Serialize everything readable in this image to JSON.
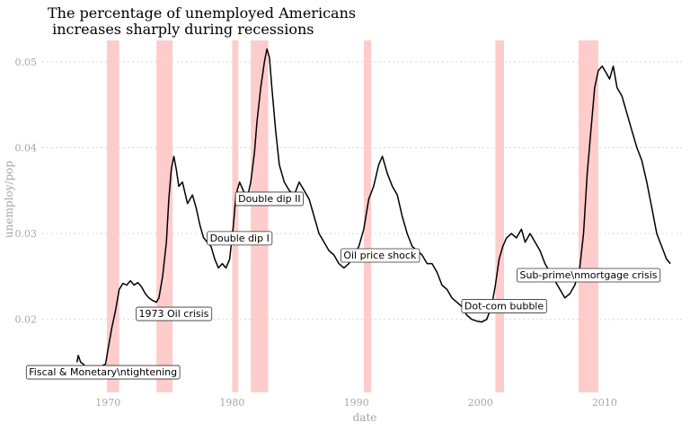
{
  "chart_data": {
    "type": "line",
    "title": "The percentage of unemployed Americans\n increases sharply during recessions",
    "xlabel": "date",
    "ylabel": "unemploy/pop",
    "xlim": [
      1964.7,
      2016.3
    ],
    "ylim": [
      0.0115,
      0.0525
    ],
    "x_ticks": [
      1970,
      1980,
      1990,
      2000,
      2010
    ],
    "x_tick_labels": [
      "1970",
      "1980",
      "1990",
      "2000",
      "2010"
    ],
    "y_ticks": [
      0.02,
      0.03,
      0.04,
      0.05
    ],
    "y_tick_labels": [
      "0.02",
      "0.03",
      "0.04",
      "0.05"
    ],
    "grid": "horizontal dashed",
    "legend": "none",
    "series": [
      {
        "x": [
          1967.5,
          1967.6,
          1967.8,
          1968.0,
          1968.3,
          1968.6,
          1969.0,
          1969.4,
          1969.8,
          1970.0,
          1970.3,
          1970.6,
          1970.9,
          1971.2,
          1971.5,
          1971.8,
          1972.1,
          1972.4,
          1972.7,
          1973.0,
          1973.3,
          1973.6,
          1973.9,
          1974.1,
          1974.4,
          1974.7,
          1974.9,
          1975.1,
          1975.3,
          1975.5,
          1975.7,
          1976.0,
          1976.4,
          1976.8,
          1977.1,
          1977.4,
          1977.7,
          1978.0,
          1978.3,
          1978.6,
          1978.9,
          1979.2,
          1979.5,
          1979.8,
          1980.1,
          1980.3,
          1980.6,
          1980.9,
          1981.2,
          1981.5,
          1981.8,
          1982.0,
          1982.3,
          1982.6,
          1982.8,
          1983.0,
          1983.2,
          1983.5,
          1983.8,
          1984.2,
          1984.6,
          1985.0,
          1985.4,
          1985.8,
          1986.2,
          1986.6,
          1987.0,
          1987.4,
          1987.8,
          1988.2,
          1988.6,
          1989.0,
          1989.4,
          1989.8,
          1990.2,
          1990.6,
          1991.0,
          1991.4,
          1991.8,
          1992.1,
          1992.5,
          1992.9,
          1993.3,
          1993.7,
          1994.1,
          1994.5,
          1994.9,
          1995.3,
          1995.7,
          1996.1,
          1996.5,
          1996.9,
          1997.3,
          1997.7,
          1998.1,
          1998.5,
          1998.9,
          1999.3,
          1999.7,
          2000.1,
          2000.5,
          2000.9,
          2001.2,
          2001.5,
          2001.8,
          2002.1,
          2002.5,
          2002.9,
          2003.3,
          2003.6,
          2004.0,
          2004.4,
          2004.8,
          2005.2,
          2005.6,
          2006.0,
          2006.4,
          2006.8,
          2007.2,
          2007.6,
          2008.0,
          2008.3,
          2008.6,
          2008.9,
          2009.2,
          2009.5,
          2009.8,
          2010.1,
          2010.4,
          2010.7,
          2011.0,
          2011.4,
          2011.8,
          2012.2,
          2012.6,
          2013.0,
          2013.4,
          2013.8,
          2014.2,
          2014.6,
          2015.0,
          2015.3
        ],
        "values": [
          0.015,
          0.0158,
          0.015,
          0.0148,
          0.0143,
          0.0145,
          0.0142,
          0.0145,
          0.0148,
          0.0165,
          0.019,
          0.021,
          0.0235,
          0.0242,
          0.024,
          0.0245,
          0.024,
          0.0243,
          0.0238,
          0.023,
          0.0225,
          0.0222,
          0.022,
          0.0225,
          0.025,
          0.029,
          0.034,
          0.0375,
          0.039,
          0.0375,
          0.0355,
          0.036,
          0.0335,
          0.0345,
          0.033,
          0.031,
          0.0295,
          0.029,
          0.0285,
          0.027,
          0.026,
          0.0265,
          0.026,
          0.027,
          0.031,
          0.0345,
          0.036,
          0.035,
          0.034,
          0.036,
          0.0395,
          0.043,
          0.047,
          0.05,
          0.0515,
          0.0505,
          0.047,
          0.042,
          0.038,
          0.036,
          0.035,
          0.0345,
          0.036,
          0.035,
          0.034,
          0.032,
          0.03,
          0.029,
          0.028,
          0.0275,
          0.0265,
          0.026,
          0.0265,
          0.0275,
          0.0285,
          0.0305,
          0.034,
          0.0355,
          0.038,
          0.039,
          0.037,
          0.0355,
          0.0345,
          0.032,
          0.03,
          0.0285,
          0.028,
          0.0275,
          0.0265,
          0.0265,
          0.0255,
          0.024,
          0.0235,
          0.0225,
          0.022,
          0.0215,
          0.0205,
          0.02,
          0.0198,
          0.0197,
          0.02,
          0.0215,
          0.024,
          0.027,
          0.0285,
          0.0295,
          0.03,
          0.0295,
          0.0305,
          0.029,
          0.03,
          0.029,
          0.028,
          0.0265,
          0.0255,
          0.0245,
          0.0235,
          0.0225,
          0.023,
          0.024,
          0.026,
          0.03,
          0.037,
          0.042,
          0.047,
          0.049,
          0.0495,
          0.0488,
          0.048,
          0.0495,
          0.047,
          0.046,
          0.044,
          0.042,
          0.04,
          0.0385,
          0.036,
          0.033,
          0.03,
          0.0285,
          0.027,
          0.0265
        ]
      }
    ],
    "recessions": [
      {
        "start": 1969.9,
        "end": 1970.9
      },
      {
        "start": 1973.9,
        "end": 1975.2
      },
      {
        "start": 1980.0,
        "end": 1980.5
      },
      {
        "start": 1981.5,
        "end": 1982.9
      },
      {
        "start": 1990.6,
        "end": 1991.2
      },
      {
        "start": 2001.2,
        "end": 2001.9
      },
      {
        "start": 2007.9,
        "end": 2009.5
      }
    ],
    "annotations": [
      {
        "label": "Fiscal & Monetary\\ntightening",
        "x": 1969.6,
        "y": 0.0139
      },
      {
        "label": "1973 Oil crisis",
        "x": 1975.3,
        "y": 0.0207
      },
      {
        "label": "Double dip I",
        "x": 1980.6,
        "y": 0.0295
      },
      {
        "label": "Double dip II",
        "x": 1983.0,
        "y": 0.0341
      },
      {
        "label": "Oil price shock",
        "x": 1991.9,
        "y": 0.0275
      },
      {
        "label": "Dot-com bubble",
        "x": 2001.9,
        "y": 0.0216
      },
      {
        "label": "Sub-prime\\nmortgage crisis",
        "x": 2008.7,
        "y": 0.0252
      }
    ],
    "colors": {
      "recession": "#ffcccc",
      "line": "#000000",
      "grid": "#d9d9d9",
      "axis_text": "#a6a6a6"
    }
  }
}
